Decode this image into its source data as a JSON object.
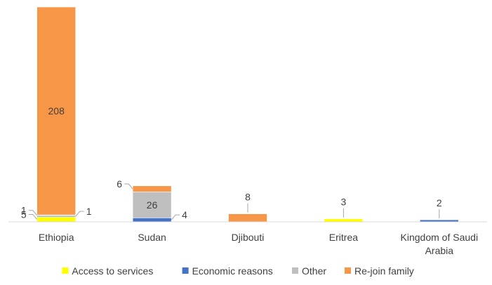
{
  "chart_data": {
    "type": "bar",
    "stacked": true,
    "categories": [
      "Ethiopia",
      "Sudan",
      "Djibouti",
      "Eritrea",
      "Kingdom of Saudi Arabia"
    ],
    "series": [
      {
        "name": "Access to services",
        "color": "#FFFF00",
        "values": [
          5,
          0,
          0,
          3,
          0
        ]
      },
      {
        "name": "Economic reasons",
        "color": "#4472C4",
        "values": [
          1,
          4,
          0,
          0,
          2
        ]
      },
      {
        "name": "Other",
        "color": "#BFBFBF",
        "values": [
          1,
          26,
          0,
          0,
          0
        ]
      },
      {
        "name": "Re-join family",
        "color": "#F79646",
        "values": [
          208,
          6,
          8,
          0,
          0
        ]
      }
    ],
    "ylim": [
      0,
      215
    ],
    "legend_position": "bottom",
    "grid": false
  }
}
